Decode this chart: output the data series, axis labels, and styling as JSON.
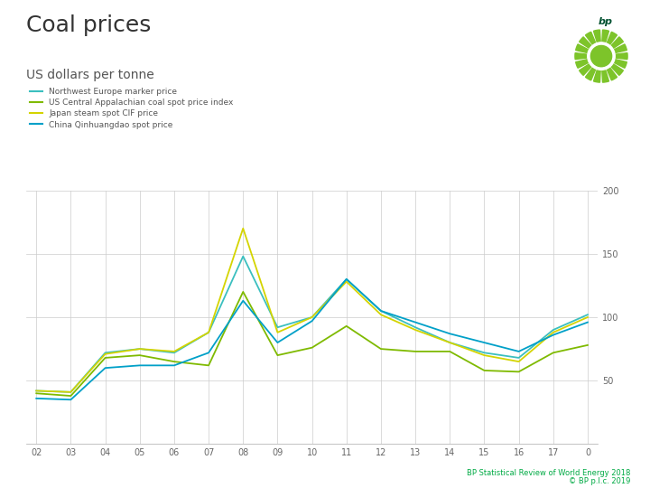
{
  "title": "Coal prices",
  "subtitle": "US dollars per tonne",
  "years": [
    "02",
    "03",
    "04",
    "05",
    "06",
    "07",
    "08",
    "09",
    "10",
    "11",
    "12",
    "13",
    "14",
    "15",
    "16",
    "17",
    "0"
  ],
  "northwest_europe": [
    42,
    41,
    72,
    75,
    72,
    88,
    148,
    92,
    100,
    130,
    105,
    92,
    80,
    72,
    68,
    90,
    102
  ],
  "us_central_appalachian": [
    40,
    38,
    68,
    70,
    65,
    62,
    120,
    70,
    76,
    93,
    75,
    73,
    73,
    58,
    57,
    72,
    78
  ],
  "japan_steam": [
    42,
    41,
    71,
    75,
    73,
    88,
    170,
    88,
    100,
    128,
    102,
    90,
    80,
    70,
    65,
    88,
    100
  ],
  "china_qinhuangdao": [
    36,
    35,
    60,
    62,
    62,
    72,
    113,
    80,
    97,
    130,
    105,
    96,
    87,
    80,
    73,
    86,
    96
  ],
  "colors": {
    "northwest_europe": "#3bbfbf",
    "us_central_appalachian": "#7fba00",
    "japan_steam": "#d4d400",
    "china_qinhuangdao": "#00a0c8"
  },
  "ylim": [
    0,
    200
  ],
  "yticks": [
    50,
    100,
    150,
    200
  ],
  "background_color": "#ffffff",
  "grid_color": "#cccccc",
  "footer": "BP Statistical Review of World Energy 2018",
  "footer2": "© BP p.l.c. 2019",
  "legend_labels": [
    "Northwest Europe marker price",
    "US Central Appalachian coal spot price index",
    "Japan steam spot CIF price",
    "China Qinhuangdao spot price"
  ],
  "logo_color": "#7dc42a",
  "logo_text_color": "#006030",
  "bp_text_color": "#005030"
}
